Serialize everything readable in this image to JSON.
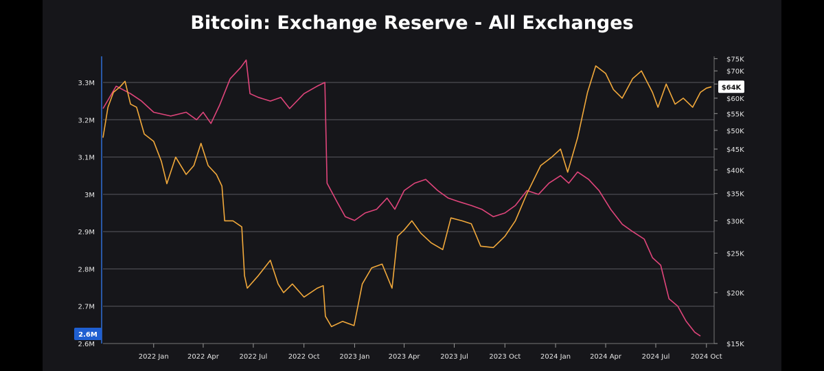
{
  "chart_data": {
    "type": "line",
    "title": "Bitcoin: Exchange Reserve - All Exchanges",
    "x_ticks": [
      "2022 Jan",
      "2022 Apr",
      "2022 Jul",
      "2022 Oct",
      "2023 Jan",
      "2023 Apr",
      "2023 Jul",
      "2023 Oct",
      "2024 Jan",
      "2024 Apr",
      "2024 Jul",
      "2024 Oct"
    ],
    "xlim": [
      "2021-10-01",
      "2024-10-15"
    ],
    "left_axis": {
      "ticks": [
        "2.6M",
        "2.7M",
        "2.8M",
        "2.9M",
        "3M",
        "3.1M",
        "3.2M",
        "3.3M"
      ],
      "values": [
        2600000,
        2700000,
        2800000,
        2900000,
        3000000,
        3100000,
        3200000,
        3300000
      ],
      "ylim": [
        2600000,
        3370000
      ]
    },
    "right_axis": {
      "scale": "log",
      "ticks": [
        "$15K",
        "$20K",
        "$25K",
        "$30K",
        "$35K",
        "$40K",
        "$45K",
        "$50K",
        "$55K",
        "$60K",
        "$65K",
        "$70K",
        "$75K"
      ],
      "values": [
        15000,
        20000,
        25000,
        30000,
        35000,
        40000,
        45000,
        50000,
        55000,
        60000,
        65000,
        70000,
        75000
      ],
      "ylim": [
        15000,
        76000
      ]
    },
    "current_labels": {
      "reserve": "2.6M",
      "price": "$64K"
    },
    "series": [
      {
        "name": "",
        "axis": "left",
        "color": "#e0457b",
        "x": [
          "2021-10-01",
          "2021-10-25",
          "2021-11-20",
          "2021-12-10",
          "2022-01-01",
          "2022-02-01",
          "2022-03-01",
          "2022-03-20",
          "2022-04-01",
          "2022-04-15",
          "2022-05-01",
          "2022-05-20",
          "2022-06-08",
          "2022-06-18",
          "2022-06-25",
          "2022-07-10",
          "2022-08-01",
          "2022-08-20",
          "2022-09-05",
          "2022-10-01",
          "2022-10-25",
          "2022-11-08",
          "2022-11-12",
          "2022-11-30",
          "2022-12-15",
          "2023-01-01",
          "2023-01-20",
          "2023-02-10",
          "2023-03-01",
          "2023-03-15",
          "2023-04-01",
          "2023-04-20",
          "2023-05-10",
          "2023-06-01",
          "2023-06-20",
          "2023-07-10",
          "2023-08-01",
          "2023-08-20",
          "2023-09-10",
          "2023-10-01",
          "2023-10-20",
          "2023-11-10",
          "2023-12-01",
          "2023-12-20",
          "2024-01-10",
          "2024-01-25",
          "2024-02-10",
          "2024-03-01",
          "2024-03-20",
          "2024-04-10",
          "2024-05-01",
          "2024-05-20",
          "2024-06-10",
          "2024-06-25",
          "2024-07-10",
          "2024-07-25",
          "2024-08-10",
          "2024-08-25",
          "2024-09-10",
          "2024-09-20"
        ],
        "values": [
          3230000,
          3290000,
          3270000,
          3250000,
          3220000,
          3210000,
          3220000,
          3200000,
          3220000,
          3190000,
          3240000,
          3310000,
          3340000,
          3360000,
          3270000,
          3260000,
          3250000,
          3260000,
          3230000,
          3270000,
          3290000,
          3300000,
          3030000,
          2980000,
          2940000,
          2930000,
          2950000,
          2960000,
          2990000,
          2960000,
          3010000,
          3030000,
          3040000,
          3010000,
          2990000,
          2980000,
          2970000,
          2960000,
          2940000,
          2950000,
          2970000,
          3010000,
          3000000,
          3030000,
          3050000,
          3030000,
          3060000,
          3040000,
          3010000,
          2960000,
          2920000,
          2900000,
          2880000,
          2830000,
          2810000,
          2720000,
          2700000,
          2660000,
          2630000,
          2620000
        ]
      },
      {
        "name": "",
        "axis": "right",
        "color": "#f2a93b",
        "x": [
          "2021-10-01",
          "2021-10-10",
          "2021-10-20",
          "2021-11-01",
          "2021-11-10",
          "2021-11-20",
          "2021-12-01",
          "2021-12-15",
          "2022-01-01",
          "2022-01-15",
          "2022-01-25",
          "2022-02-10",
          "2022-03-01",
          "2022-03-15",
          "2022-03-28",
          "2022-04-10",
          "2022-04-25",
          "2022-05-05",
          "2022-05-10",
          "2022-05-25",
          "2022-06-10",
          "2022-06-15",
          "2022-06-20",
          "2022-07-10",
          "2022-08-01",
          "2022-08-15",
          "2022-08-25",
          "2022-09-10",
          "2022-10-01",
          "2022-10-25",
          "2022-11-05",
          "2022-11-09",
          "2022-11-20",
          "2022-12-10",
          "2022-12-31",
          "2023-01-15",
          "2023-02-01",
          "2023-02-20",
          "2023-03-10",
          "2023-03-20",
          "2023-04-01",
          "2023-04-15",
          "2023-05-01",
          "2023-05-20",
          "2023-06-10",
          "2023-06-25",
          "2023-07-15",
          "2023-08-01",
          "2023-08-18",
          "2023-09-10",
          "2023-10-01",
          "2023-10-20",
          "2023-11-10",
          "2023-12-05",
          "2023-12-25",
          "2024-01-10",
          "2024-01-23",
          "2024-02-10",
          "2024-02-28",
          "2024-03-14",
          "2024-04-01",
          "2024-04-15",
          "2024-05-01",
          "2024-05-20",
          "2024-06-05",
          "2024-06-25",
          "2024-07-05",
          "2024-07-20",
          "2024-08-05",
          "2024-08-20",
          "2024-09-06",
          "2024-09-20",
          "2024-10-01",
          "2024-10-10"
        ],
        "values": [
          48000,
          57000,
          62000,
          64000,
          66000,
          58000,
          57000,
          49000,
          47000,
          42000,
          37000,
          43000,
          39000,
          41000,
          46500,
          41000,
          39000,
          36500,
          30000,
          30000,
          29000,
          22000,
          20500,
          22000,
          24000,
          21000,
          20000,
          21000,
          19500,
          20500,
          20800,
          17500,
          16500,
          17000,
          16600,
          21000,
          23000,
          23500,
          20500,
          27500,
          28500,
          30000,
          28000,
          26500,
          25500,
          30500,
          30000,
          29500,
          26000,
          25800,
          27500,
          30000,
          35000,
          41000,
          43000,
          45000,
          39500,
          48000,
          62000,
          72000,
          69000,
          63000,
          60000,
          67000,
          70000,
          62000,
          57000,
          65000,
          58000,
          60000,
          57000,
          62000,
          63500,
          64000
        ]
      }
    ]
  }
}
